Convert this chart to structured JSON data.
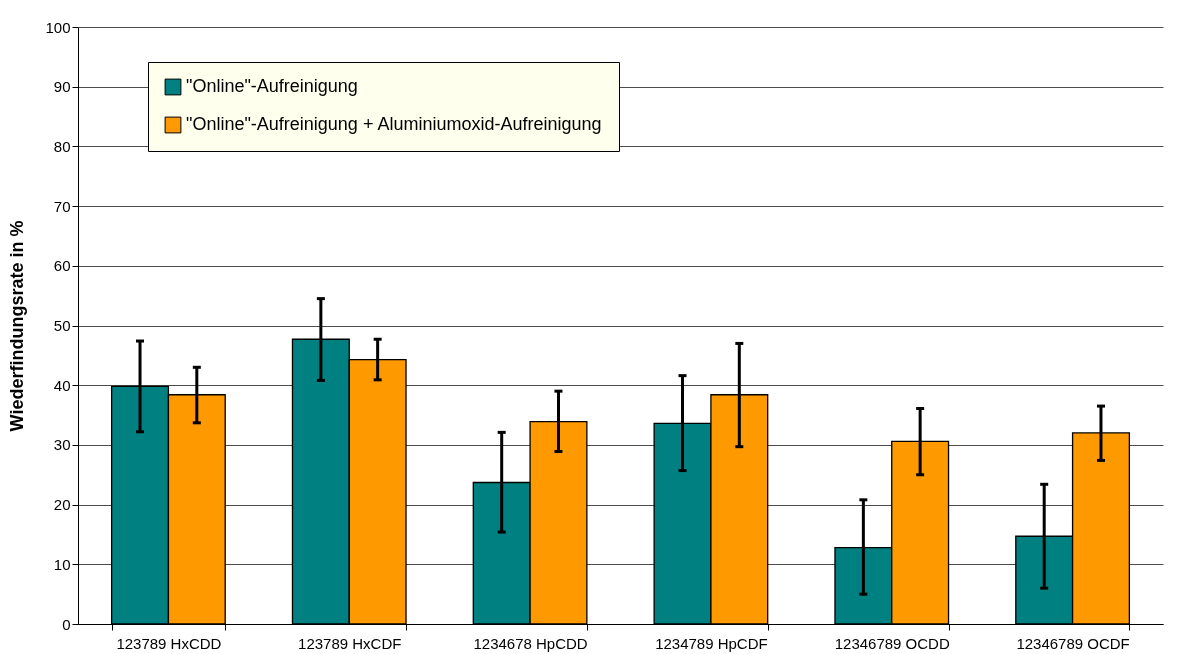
{
  "chart_data": {
    "type": "bar",
    "ylabel": "Wiederfindungsrate in %",
    "categories": [
      "123789 HxCDD",
      "123789 HxCDF",
      "1234678 HpCDD",
      "1234789 HpCDF",
      "12346789 OCDD",
      "12346789 OCDF"
    ],
    "series": [
      {
        "name": "\"Online\"-Aufreinigung",
        "color": "#008080",
        "values": [
          39.8,
          47.7,
          23.7,
          33.6,
          12.8,
          14.7
        ],
        "errors": [
          [
            32.2,
            47.4
          ],
          [
            40.8,
            54.5
          ],
          [
            15.4,
            32.1
          ],
          [
            25.7,
            41.6
          ],
          [
            5.0,
            20.8
          ],
          [
            6.0,
            23.4
          ]
        ]
      },
      {
        "name": "\"Online\"-Aufreinigung + Aluminiumoxid-Aufreinigung",
        "color": "#ff9900",
        "values": [
          38.4,
          44.3,
          33.9,
          38.4,
          30.6,
          32.0
        ],
        "errors": [
          [
            33.7,
            43.0
          ],
          [
            40.9,
            47.7
          ],
          [
            28.9,
            39.0
          ],
          [
            29.7,
            47.0
          ],
          [
            25.0,
            36.1
          ],
          [
            27.4,
            36.5
          ]
        ]
      }
    ],
    "ylim": [
      0,
      100
    ],
    "yticks": [
      0,
      10,
      20,
      30,
      40,
      50,
      60,
      70,
      80,
      90,
      100
    ],
    "grid": "y",
    "legend": "top left"
  }
}
